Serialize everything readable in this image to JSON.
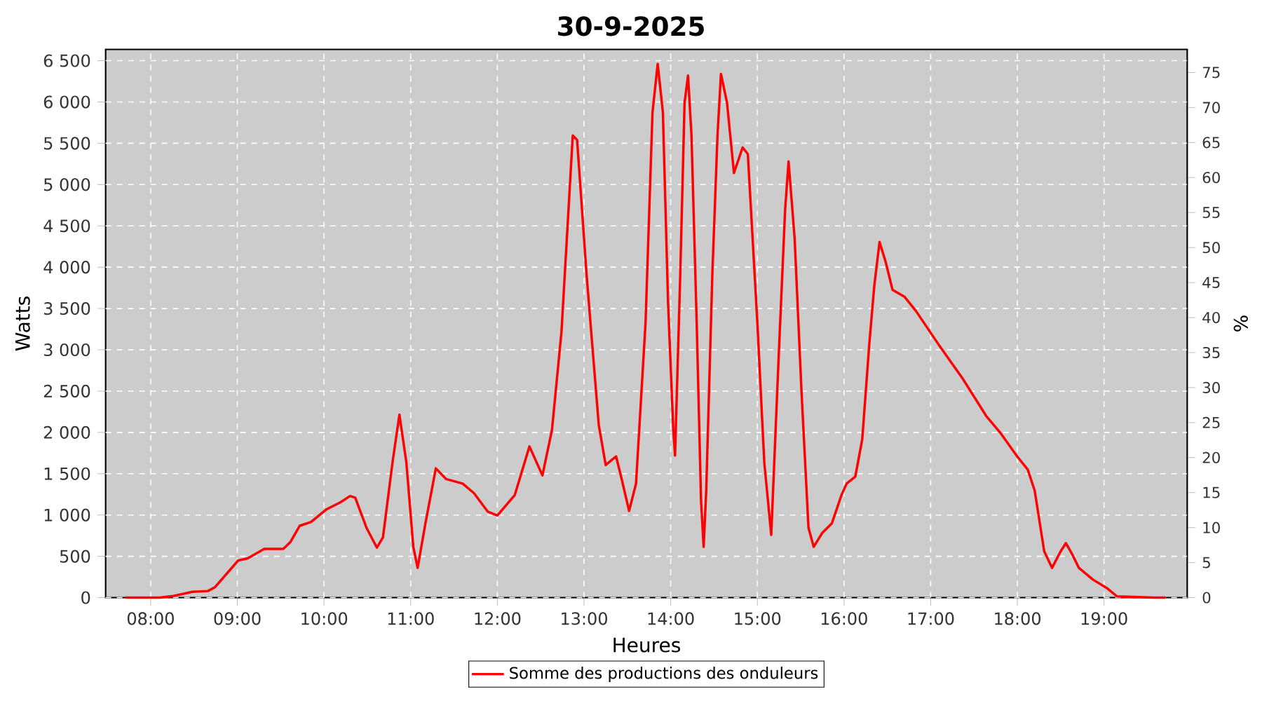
{
  "chart_data": {
    "type": "line",
    "title": "30-9-2025",
    "xlabel": "Heures",
    "ylabel": "Watts",
    "y2label": "%",
    "series": [
      {
        "name": "Somme des productions des onduleurs",
        "color": "#ff0000",
        "x": [
          7.71,
          8.1,
          8.26,
          8.48,
          8.66,
          8.74,
          9.01,
          9.12,
          9.31,
          9.53,
          9.61,
          9.72,
          9.85,
          10.03,
          10.19,
          10.3,
          10.36,
          10.49,
          10.61,
          10.68,
          10.79,
          10.87,
          10.95,
          11.03,
          11.08,
          11.17,
          11.29,
          11.41,
          11.6,
          11.73,
          11.89,
          12.0,
          12.2,
          12.37,
          12.52,
          12.63,
          12.74,
          12.87,
          12.92,
          13.03,
          13.17,
          13.25,
          13.37,
          13.44,
          13.52,
          13.6,
          13.71,
          13.79,
          13.85,
          13.91,
          13.97,
          14.03,
          14.05,
          14.11,
          14.16,
          14.2,
          14.24,
          14.3,
          14.35,
          14.38,
          14.41,
          14.48,
          14.54,
          14.58,
          14.65,
          14.73,
          14.83,
          14.89,
          15.0,
          15.08,
          15.16,
          15.24,
          15.32,
          15.36,
          15.43,
          15.51,
          15.59,
          15.65,
          15.75,
          15.86,
          15.97,
          16.03,
          16.13,
          16.21,
          16.29,
          16.35,
          16.41,
          16.48,
          16.56,
          16.7,
          16.83,
          17.1,
          17.37,
          17.64,
          17.8,
          17.99,
          18.12,
          18.2,
          18.31,
          18.4,
          18.5,
          18.56,
          18.63,
          18.71,
          18.87,
          19.04,
          19.15,
          19.58,
          19.71
        ],
        "values": [
          0,
          0,
          20,
          70,
          80,
          125,
          450,
          475,
          590,
          590,
          670,
          870,
          915,
          1070,
          1155,
          1230,
          1210,
          845,
          605,
          730,
          1635,
          2215,
          1635,
          615,
          360,
          900,
          1565,
          1435,
          1380,
          1265,
          1040,
          995,
          1240,
          1830,
          1480,
          2030,
          3220,
          5595,
          5540,
          3900,
          2090,
          1605,
          1710,
          1410,
          1050,
          1380,
          3330,
          5875,
          6460,
          5875,
          3560,
          2030,
          1720,
          3900,
          5990,
          6320,
          5595,
          3330,
          1180,
          615,
          1295,
          3900,
          5595,
          6340,
          5990,
          5140,
          5450,
          5370,
          3330,
          1635,
          760,
          2770,
          4690,
          5280,
          4350,
          2480,
          845,
          615,
          785,
          900,
          1240,
          1380,
          1465,
          1915,
          3050,
          3785,
          4305,
          4065,
          3725,
          3640,
          3470,
          3050,
          2650,
          2200,
          2000,
          1720,
          1550,
          1295,
          560,
          360,
          560,
          660,
          530,
          360,
          220,
          110,
          15,
          0,
          0
        ]
      }
    ],
    "xlim": [
      7.48,
      19.96
    ],
    "xticks": [
      {
        "value": 8,
        "label": "08:00"
      },
      {
        "value": 9,
        "label": "09:00"
      },
      {
        "value": 10,
        "label": "10:00"
      },
      {
        "value": 11,
        "label": "11:00"
      },
      {
        "value": 12,
        "label": "12:00"
      },
      {
        "value": 13,
        "label": "13:00"
      },
      {
        "value": 14,
        "label": "14:00"
      },
      {
        "value": 15,
        "label": "15:00"
      },
      {
        "value": 16,
        "label": "16:00"
      },
      {
        "value": 17,
        "label": "17:00"
      },
      {
        "value": 18,
        "label": "18:00"
      },
      {
        "value": 19,
        "label": "19:00"
      }
    ],
    "ylim": [
      0,
      6636
    ],
    "yticks": [
      0,
      500,
      {
        "value": 1000,
        "label": "1 000"
      },
      {
        "value": 1500,
        "label": "1 500"
      },
      {
        "value": 2000,
        "label": "2 000"
      },
      {
        "value": 2500,
        "label": "2 500"
      },
      {
        "value": 3000,
        "label": "3 000"
      },
      {
        "value": 3500,
        "label": "3 500"
      },
      {
        "value": 4000,
        "label": "4 000"
      },
      {
        "value": 4500,
        "label": "4 500"
      },
      {
        "value": 5000,
        "label": "5 000"
      },
      {
        "value": 5500,
        "label": "5 500"
      },
      {
        "value": 6000,
        "label": "6 000"
      },
      {
        "value": 6500,
        "label": "6 500"
      }
    ],
    "y2lim": [
      0,
      78.3
    ],
    "y2ticks": [
      0,
      5,
      10,
      15,
      20,
      25,
      30,
      35,
      40,
      45,
      50,
      55,
      60,
      65,
      70,
      75
    ],
    "grid": true,
    "legend": "bottom",
    "marker": "none",
    "line_style": "solid"
  }
}
